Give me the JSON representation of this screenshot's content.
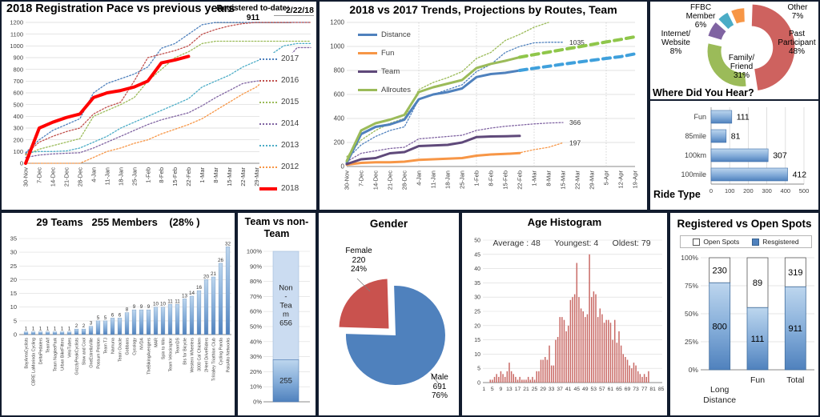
{
  "chart_data": [
    {
      "id": "registration_pace",
      "type": "line",
      "title": "2018 Registration Pace vs previous years",
      "note": "Registered to-date: 911",
      "date": "2/22/18",
      "categories": [
        "30-Nov",
        "7-Dec",
        "14-Dec",
        "21-Dec",
        "28-Dec",
        "4-Jan",
        "11-Jan",
        "18-Jan",
        "25-Jan",
        "1-Feb",
        "8-Feb",
        "15-Feb",
        "22-Feb",
        "1-Mar",
        "8-Mar",
        "15-Mar",
        "22-Mar",
        "29-Mar",
        "5-Apr",
        "12-Apr",
        "19-Apr",
        "26-Apr"
      ],
      "ylim": [
        0,
        1200
      ],
      "ytick": 100,
      "grid": "horizontal",
      "legend_position": "right",
      "series": [
        {
          "name": "2017",
          "color": "#4F81BD",
          "style": "dot",
          "values": [
            90,
            200,
            280,
            330,
            380,
            600,
            680,
            720,
            760,
            820,
            980,
            1020,
            1100,
            1180,
            1200,
            1200,
            1200,
            1200,
            1200,
            1200,
            1200,
            1200
          ]
        },
        {
          "name": "2016",
          "color": "#C0504D",
          "style": "dot",
          "values": [
            80,
            180,
            230,
            270,
            300,
            420,
            480,
            520,
            700,
            900,
            930,
            960,
            1000,
            1100,
            1140,
            1170,
            1190,
            1200,
            1200,
            1200,
            1200,
            1200
          ]
        },
        {
          "name": "2015",
          "color": "#9BBB59",
          "style": "dot",
          "values": [
            70,
            120,
            150,
            180,
            210,
            400,
            450,
            500,
            560,
            700,
            800,
            900,
            950,
            1020,
            1040,
            1040,
            1040,
            1040,
            1040,
            1040,
            1040,
            1040
          ]
        },
        {
          "name": "2014",
          "color": "#8064A2",
          "style": "dot",
          "values": [
            50,
            70,
            80,
            85,
            90,
            130,
            180,
            230,
            280,
            330,
            370,
            400,
            430,
            490,
            560,
            620,
            680,
            700,
            710,
            850,
            985,
            985
          ]
        },
        {
          "name": "2013",
          "color": "#4BACC6",
          "style": "dot",
          "values": [
            90,
            100,
            100,
            105,
            130,
            180,
            230,
            300,
            350,
            400,
            450,
            500,
            550,
            650,
            700,
            750,
            820,
            870,
            920,
            1000,
            1020,
            1020
          ]
        },
        {
          "name": "2012",
          "color": "#F79646",
          "style": "dot",
          "values": [
            0,
            0,
            0,
            0,
            0,
            50,
            100,
            130,
            170,
            200,
            250,
            290,
            330,
            380,
            450,
            520,
            590,
            650,
            750,
            850,
            905,
            910
          ]
        },
        {
          "name": "2018",
          "color": "#FF0000",
          "style": "solid",
          "width": 4,
          "values": [
            0,
            300,
            350,
            390,
            420,
            560,
            600,
            620,
            650,
            700,
            855,
            880,
            911
          ]
        }
      ]
    },
    {
      "id": "trends_projections",
      "type": "line",
      "title": "2018 vs 2017 Trends, Projections by Routes, Team",
      "categories": [
        "30-Nov",
        "7-Dec",
        "14-Dec",
        "21-Dec",
        "28-Dec",
        "4-Jan",
        "11-Jan",
        "18-Jan",
        "25-Jan",
        "1-Feb",
        "8-Feb",
        "15-Feb",
        "22-Feb",
        "1-Mar",
        "8-Mar",
        "15-Mar",
        "22-Mar",
        "29-Mar",
        "5-Apr",
        "12-Apr",
        "19-Apr"
      ],
      "ylim": [
        0,
        1200
      ],
      "ytick": 200,
      "legend_position": "top-left",
      "series": [
        {
          "name": "Distance 2017",
          "legend": false,
          "color": "#4F81BD",
          "style": "dot",
          "values": [
            60,
            180,
            250,
            300,
            330,
            560,
            600,
            640,
            680,
            790,
            850,
            950,
            1000,
            1030,
            1035,
            1035
          ],
          "end_label": "1035"
        },
        {
          "name": "Allroutes 2017",
          "legend": false,
          "color": "#9BBB59",
          "style": "dot",
          "values": [
            80,
            220,
            300,
            360,
            400,
            640,
            700,
            740,
            790,
            900,
            950,
            1050,
            1100,
            1160,
            1200
          ]
        },
        {
          "name": "Team 2017",
          "legend": false,
          "color": "#8064A2",
          "style": "dot",
          "values": [
            40,
            110,
            130,
            150,
            160,
            230,
            240,
            250,
            260,
            300,
            320,
            335,
            345,
            355,
            362,
            366
          ],
          "end_label": "366"
        },
        {
          "name": "Fun 2017",
          "legend": false,
          "color": "#F79646",
          "style": "dot",
          "values": [
            20,
            30,
            35,
            35,
            40,
            55,
            60,
            65,
            70,
            90,
            95,
            105,
            115,
            140,
            160,
            197
          ],
          "end_label": "197"
        },
        {
          "name": "Distance",
          "color": "#4F81BD",
          "style": "solid",
          "width": 3,
          "values": [
            30,
            270,
            330,
            350,
            390,
            560,
            600,
            620,
            650,
            745,
            770,
            780,
            800
          ]
        },
        {
          "name": "Fun",
          "color": "#F79646",
          "style": "solid",
          "width": 3,
          "values": [
            15,
            30,
            35,
            35,
            40,
            55,
            60,
            65,
            70,
            90,
            100,
            105,
            111
          ]
        },
        {
          "name": "Team",
          "color": "#5F497A",
          "style": "solid",
          "width": 3,
          "values": [
            20,
            60,
            70,
            110,
            120,
            170,
            175,
            180,
            200,
            245,
            250,
            252,
            255
          ]
        },
        {
          "name": "Allroutes",
          "color": "#9BBB59",
          "style": "solid",
          "width": 3,
          "values": [
            45,
            300,
            360,
            390,
            430,
            620,
            660,
            690,
            720,
            820,
            855,
            880,
            910
          ]
        },
        {
          "name": "Distance projection",
          "legend": false,
          "color": "#3FA0DC",
          "style": "dash",
          "width": 4,
          "start": 12,
          "values": [
            800,
            818,
            835,
            852,
            868,
            884,
            900,
            915,
            938
          ]
        },
        {
          "name": "Allroutes projection",
          "legend": false,
          "color": "#8FC64A",
          "style": "dash",
          "width": 4,
          "start": 12,
          "values": [
            910,
            932,
            953,
            974,
            995,
            1016,
            1037,
            1058,
            1080
          ]
        }
      ]
    },
    {
      "id": "where_did_you_hear",
      "type": "pie",
      "title": "Where Did You Hear?",
      "slices": [
        {
          "label": "Past Participant",
          "pct": 48,
          "pct_label": "48%",
          "color": "#CE625F",
          "big": true
        },
        {
          "label": "Family/ Friend",
          "pct": 31,
          "pct_label": "31%",
          "color": "#9BBB59"
        },
        {
          "label": "Internet/ Website",
          "pct": 8,
          "pct_label": "8%",
          "color": "#8064A2"
        },
        {
          "label": "FFBC Member",
          "pct": 6,
          "pct_label": "6%",
          "color": "#4BACC6"
        },
        {
          "label": "Other",
          "pct": 7,
          "pct_label": "7%",
          "color": "#F79646"
        }
      ]
    },
    {
      "id": "ride_type",
      "type": "bar",
      "title": "Ride Type",
      "orientation": "horizontal",
      "categories": [
        "Fun",
        "85mile",
        "100km",
        "100mile"
      ],
      "values": [
        111,
        81,
        307,
        412
      ],
      "xlim": [
        0,
        500
      ],
      "xtick": 100
    },
    {
      "id": "teams",
      "type": "bar",
      "title": "29 Teams   255 Members    (28% )",
      "categories": [
        "BayAreaCyclists",
        "CBRE LaMorinda Cycling",
        "DeltaPedalers",
        "TeamAlf",
        "Team NagleePark",
        "Urban BikeFitters",
        "VeloTubes",
        "GrizzlyPeakCyclists",
        "Slow and Cool",
        "OneEstrellaVille",
        "Possum Peloton",
        "Team TJ",
        "Namuna",
        "Team Oracle",
        "Gobbans",
        "Cycology",
        "NVDA",
        "TheBikingAvengers",
        "MAR",
        "Spin to Win",
        "Team Velociraptor",
        "TeamDS",
        "BIs for Bicycle",
        "Western Wheelers",
        "3000 Cal Chicken",
        "2Heel DriveRiders",
        "TriValley Triathlon Club",
        "Cycling Panda",
        "PaloAlto Networks"
      ],
      "values": [
        1,
        1,
        1,
        1,
        1,
        1,
        1,
        2,
        2,
        3,
        5,
        5,
        6,
        6,
        8,
        9,
        9,
        9,
        10,
        10,
        11,
        11,
        13,
        14,
        16,
        20,
        21,
        26,
        32
      ],
      "ylim": [
        0,
        35
      ],
      "ytick": 5
    },
    {
      "id": "team_vs_nonteam",
      "type": "stacked-bar",
      "title": "Team vs non-Team",
      "ylim_pct": [
        0,
        100
      ],
      "ytick_pct": 10,
      "segments": [
        {
          "label": "Team",
          "value": 255,
          "display": "255"
        },
        {
          "label": "Non-Team",
          "value": 656,
          "display_lines": [
            "Non",
            "-",
            "Tea",
            "m",
            "656"
          ]
        }
      ]
    },
    {
      "id": "gender",
      "type": "pie",
      "title": "Gender",
      "slices": [
        {
          "label": "Male",
          "value": 691,
          "pct": 76,
          "pct_label": "76%",
          "color": "#4F81BD"
        },
        {
          "label": "Female",
          "value": 220,
          "pct": 24,
          "pct_label": "24%",
          "color": "#C9524E",
          "exploded": true
        }
      ]
    },
    {
      "id": "age_histogram",
      "type": "histogram",
      "title": "Age Histogram",
      "annotation": "Average : 48      Youngest: 4      Oldest: 79",
      "age_start": 1,
      "counts": [
        0,
        0,
        0,
        1,
        1,
        2,
        3,
        2,
        4,
        3,
        2,
        4,
        7,
        4,
        3,
        2,
        1,
        2,
        1,
        1,
        1,
        2,
        1,
        2,
        1,
        4,
        4,
        8,
        8,
        9,
        8,
        13,
        6,
        6,
        15,
        16,
        23,
        23,
        22,
        18,
        20,
        29,
        30,
        31,
        42,
        30,
        26,
        25,
        23,
        24,
        45,
        30,
        32,
        31,
        23,
        26,
        24,
        21,
        22,
        22,
        21,
        15,
        22,
        14,
        18,
        13,
        10,
        9,
        8,
        6,
        5,
        7,
        6,
        4,
        3,
        2,
        3,
        2,
        4,
        0,
        0,
        0,
        0,
        0,
        0
      ],
      "ylim": [
        0,
        50
      ],
      "ytick": 5,
      "xticks": [
        1,
        5,
        9,
        13,
        17,
        21,
        25,
        29,
        33,
        37,
        41,
        45,
        49,
        53,
        57,
        61,
        65,
        69,
        73,
        77,
        81,
        85
      ],
      "bar_color": "#C96A66"
    },
    {
      "id": "registered_vs_open",
      "type": "stacked-column",
      "title": "Registered vs Open Spots",
      "legend": [
        "Open Spots",
        "Resgistered"
      ],
      "categories": [
        "Long Distance",
        "Fun",
        "Total"
      ],
      "registered": [
        800,
        111,
        911
      ],
      "open": [
        230,
        89,
        319
      ],
      "ytick_pct": 25,
      "registered_color": "#4F81BD",
      "open_color": "#FFFFFF"
    }
  ]
}
